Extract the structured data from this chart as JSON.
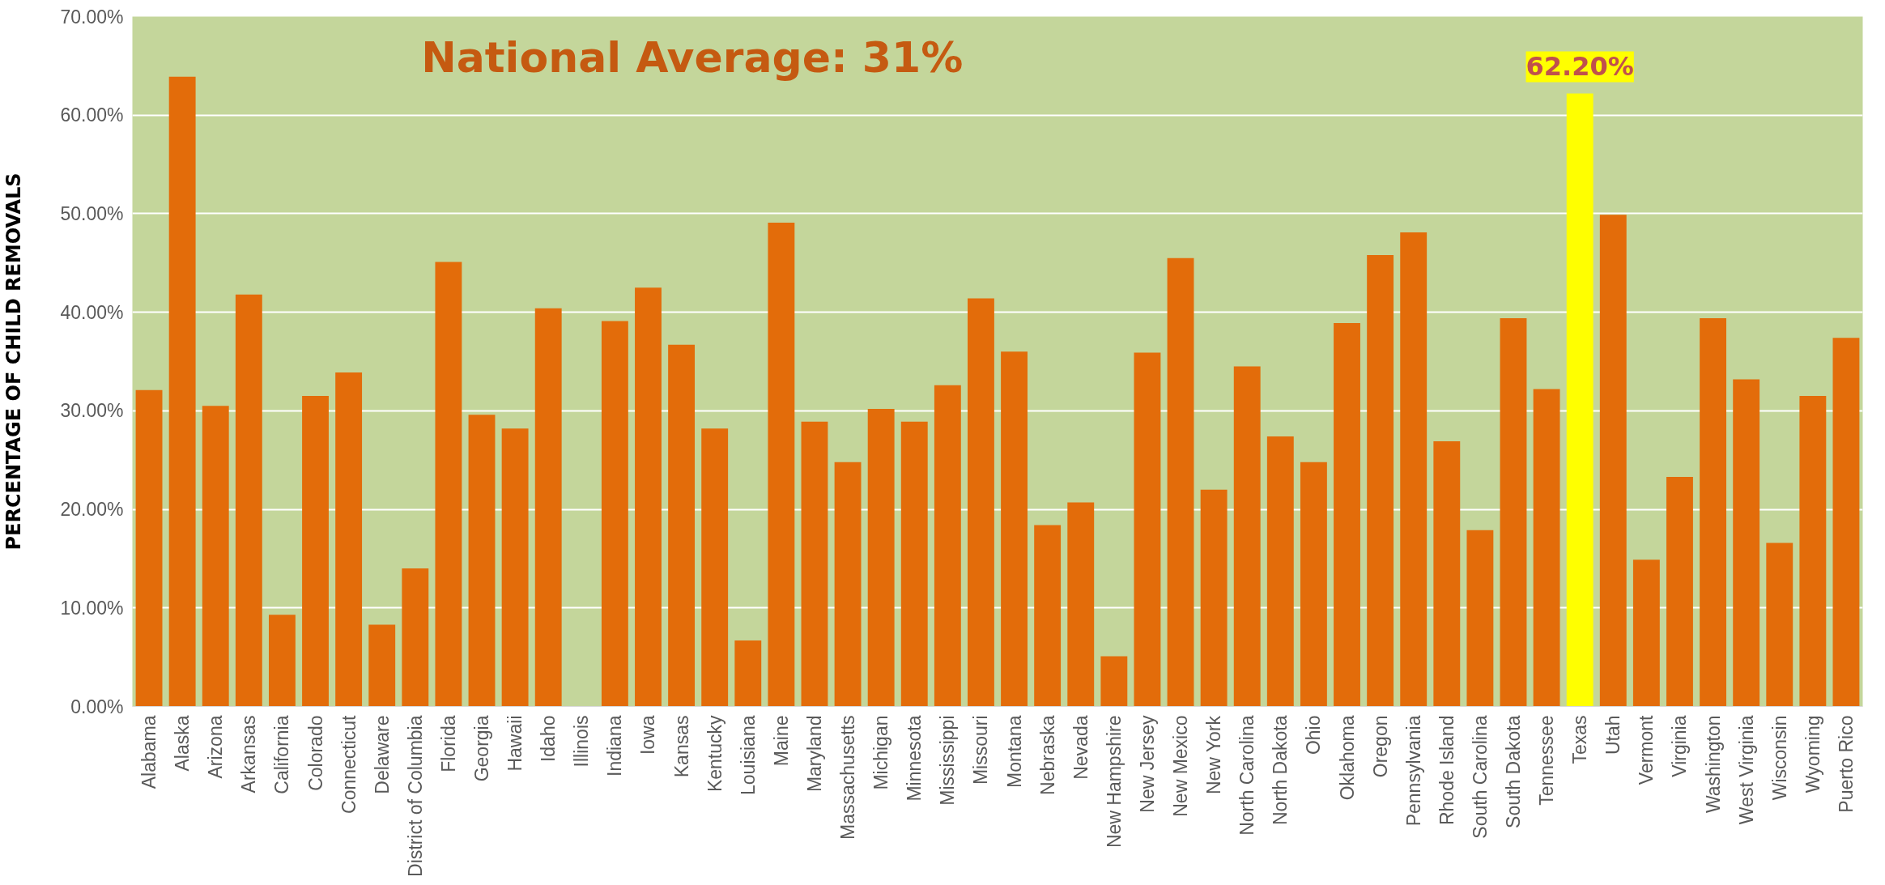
{
  "chart_data": {
    "type": "bar",
    "title": "National Average: 31%",
    "ylabel": "PERCENTAGE OF CHILD REMOVALS",
    "categories": [
      "Alabama",
      "Alaska",
      "Arizona",
      "Arkansas",
      "California",
      "Colorado",
      "Connecticut",
      "Delaware",
      "District of Columbia",
      "Florida",
      "Georgia",
      "Hawaii",
      "Idaho",
      "Illinois",
      "Indiana",
      "Iowa",
      "Kansas",
      "Kentucky",
      "Louisiana",
      "Maine",
      "Maryland",
      "Massachusetts",
      "Michigan",
      "Minnesota",
      "Mississippi",
      "Missouri",
      "Montana",
      "Nebraska",
      "Nevada",
      "New Hampshire",
      "New Jersey",
      "New Mexico",
      "New York",
      "North Carolina",
      "North Dakota",
      "Ohio",
      "Oklahoma",
      "Oregon",
      "Pennsylvania",
      "Rhode Island",
      "South Carolina",
      "South Dakota",
      "Tennessee",
      "Texas",
      "Utah",
      "Vermont",
      "Virginia",
      "Washington",
      "West Virginia",
      "Wisconsin",
      "Wyoming",
      "Puerto Rico"
    ],
    "values": [
      32.1,
      63.9,
      30.5,
      41.8,
      9.3,
      31.5,
      33.9,
      8.3,
      14.0,
      45.1,
      29.6,
      28.2,
      40.4,
      0,
      39.1,
      42.5,
      36.7,
      28.2,
      6.7,
      49.1,
      28.9,
      24.8,
      30.2,
      28.9,
      32.6,
      41.4,
      36.0,
      18.4,
      20.7,
      5.1,
      35.9,
      45.5,
      22.0,
      34.5,
      27.4,
      24.8,
      38.9,
      45.8,
      48.1,
      26.9,
      17.9,
      39.4,
      32.2,
      62.2,
      49.9,
      14.9,
      23.3,
      39.4,
      33.2,
      16.6,
      31.5,
      37.4
    ],
    "colors": [
      "#e36c0a",
      "#e36c0a",
      "#e36c0a",
      "#e36c0a",
      "#e36c0a",
      "#e36c0a",
      "#e36c0a",
      "#e36c0a",
      "#e36c0a",
      "#e36c0a",
      "#e36c0a",
      "#e36c0a",
      "#e36c0a",
      "#e36c0a",
      "#e36c0a",
      "#e36c0a",
      "#e36c0a",
      "#e36c0a",
      "#e36c0a",
      "#e36c0a",
      "#e36c0a",
      "#e36c0a",
      "#e36c0a",
      "#e36c0a",
      "#e36c0a",
      "#e36c0a",
      "#e36c0a",
      "#e36c0a",
      "#e36c0a",
      "#e36c0a",
      "#e36c0a",
      "#e36c0a",
      "#e36c0a",
      "#e36c0a",
      "#e36c0a",
      "#e36c0a",
      "#e36c0a",
      "#e36c0a",
      "#e36c0a",
      "#e36c0a",
      "#e36c0a",
      "#e36c0a",
      "#e36c0a",
      "#ffff00",
      "#e36c0a",
      "#e36c0a",
      "#e36c0a",
      "#e36c0a",
      "#e36c0a",
      "#e36c0a",
      "#e36c0a",
      "#e36c0a"
    ],
    "value_labels": [
      null,
      null,
      null,
      null,
      null,
      null,
      null,
      null,
      null,
      null,
      null,
      null,
      null,
      null,
      null,
      null,
      null,
      null,
      null,
      null,
      null,
      null,
      null,
      null,
      null,
      null,
      null,
      null,
      null,
      null,
      null,
      null,
      null,
      null,
      null,
      null,
      null,
      null,
      null,
      null,
      null,
      null,
      null,
      "62.20%",
      null,
      null,
      null,
      null,
      null,
      null,
      null,
      null
    ],
    "ylim": [
      0,
      70
    ],
    "yticks": [
      {
        "value": 0,
        "label": "0.00%"
      },
      {
        "value": 10,
        "label": "10.00%"
      },
      {
        "value": 20,
        "label": "20.00%"
      },
      {
        "value": 30,
        "label": "30.00%"
      },
      {
        "value": 40,
        "label": "40.00%"
      },
      {
        "value": 50,
        "label": "50.00%"
      },
      {
        "value": 60,
        "label": "60.00%"
      },
      {
        "value": 70,
        "label": "70.00%"
      }
    ],
    "grid": "y"
  }
}
